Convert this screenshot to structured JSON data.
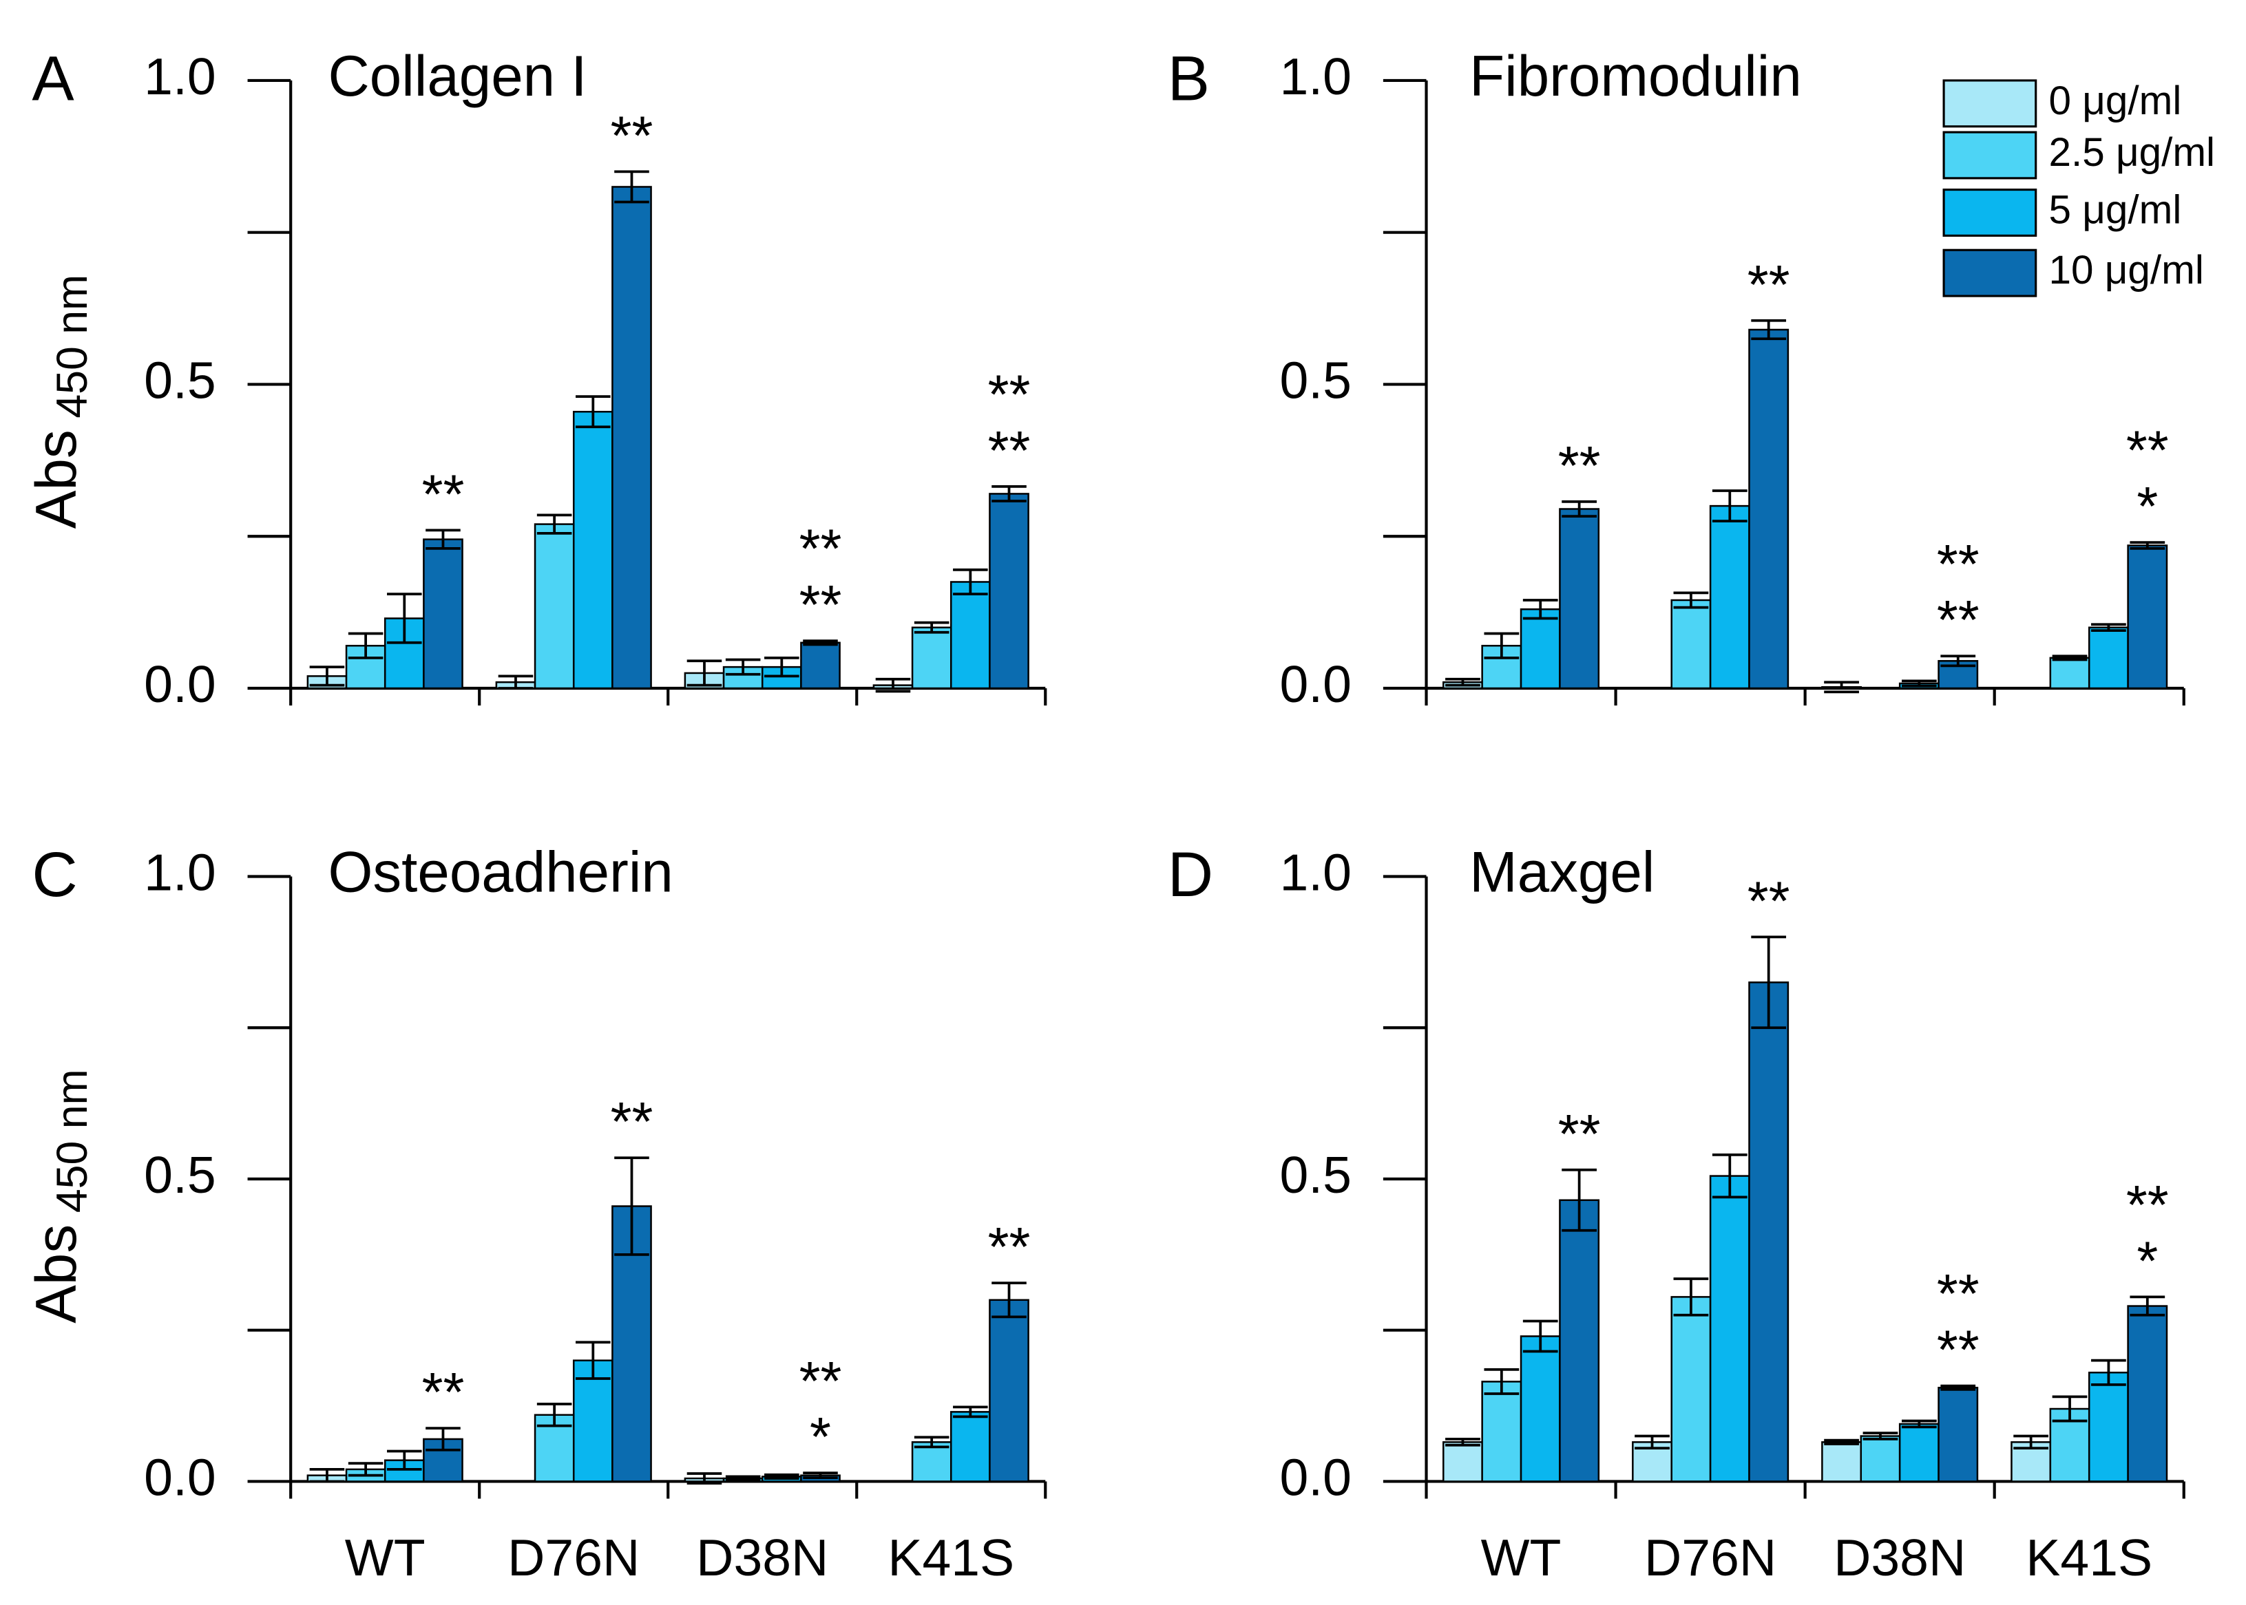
{
  "chart_data": [
    {
      "type": "bar",
      "panel": "A",
      "title": "Collagen I",
      "ylabel": "Abs",
      "ylabel_subscript": "450 nm",
      "ylim": [
        0,
        1
      ],
      "yticks": [
        {
          "value": 0,
          "label": "0.0"
        },
        0.5,
        {
          "value": 1,
          "label": "1.0"
        }
      ],
      "yminor": [
        0.25,
        0.75
      ],
      "series": [
        {
          "color": "#a8e8f8",
          "values": [
            0.02,
            0.01,
            0.025,
            0.005
          ],
          "errors": [
            0.015,
            0.01,
            0.02,
            0.01
          ]
        },
        {
          "color": "#4dd4f5",
          "values": [
            0.07,
            0.27,
            0.035,
            0.1
          ],
          "errors": [
            0.02,
            0.015,
            0.012,
            0.008
          ]
        },
        {
          "color": "#0ab6ef",
          "values": [
            0.115,
            0.455,
            0.035,
            0.175
          ],
          "errors": [
            0.04,
            0.025,
            0.015,
            0.02
          ]
        },
        {
          "color": "#0b6cb0",
          "values": [
            0.245,
            0.825,
            0.075,
            0.32
          ],
          "errors": [
            0.015,
            0.025,
            0.003,
            0.012
          ]
        }
      ],
      "annotations": [
        [
          {
            "text": "**",
            "color": "#000000"
          }
        ],
        [
          {
            "text": "**",
            "color": "#ff0000"
          }
        ],
        [
          {
            "text": "**",
            "color": "#000000"
          },
          {
            "text": "**",
            "color": "#ff0000"
          }
        ],
        [
          {
            "text": "**",
            "color": "#000000"
          },
          {
            "text": "**",
            "color": "#ff0000"
          }
        ]
      ]
    },
    {
      "type": "bar",
      "panel": "B",
      "title": "Fibromodulin",
      "legend": "upper right",
      "ylim": [
        0,
        1
      ],
      "yticks": [
        {
          "value": 0,
          "label": "0.0"
        },
        0.5,
        {
          "value": 1,
          "label": "1.0"
        }
      ],
      "yminor": [
        0.25,
        0.75
      ],
      "series": [
        {
          "name": "0 μg/ml",
          "color": "#a8e8f8",
          "values": [
            0.01,
            0,
            0.002,
            0
          ],
          "errors": [
            0.005,
            0,
            0.008,
            0
          ]
        },
        {
          "name": "2.5 μg/ml",
          "color": "#4dd4f5",
          "values": [
            0.07,
            0.145,
            0,
            0.05
          ],
          "errors": [
            0.02,
            0.012,
            0,
            0.003
          ]
        },
        {
          "name": "5 μg/ml",
          "color": "#0ab6ef",
          "values": [
            0.13,
            0.3,
            0.008,
            0.1
          ],
          "errors": [
            0.015,
            0.025,
            0.004,
            0.005
          ]
        },
        {
          "name": "10 μg/ml",
          "color": "#0b6cb0",
          "values": [
            0.295,
            0.59,
            0.045,
            0.235
          ],
          "errors": [
            0.012,
            0.015,
            0.008,
            0.005
          ]
        }
      ],
      "annotations": [
        [
          {
            "text": "**",
            "color": "#000000"
          }
        ],
        [
          {
            "text": "**",
            "color": "#ff0000"
          }
        ],
        [
          {
            "text": "**",
            "color": "#000000"
          },
          {
            "text": "**",
            "color": "#ff0000"
          }
        ],
        [
          {
            "text": "**",
            "color": "#000000"
          },
          {
            "text": "*",
            "color": "#ff0000"
          }
        ]
      ]
    },
    {
      "type": "bar",
      "panel": "C",
      "title": "Osteoadherin",
      "ylabel": "Abs",
      "ylabel_subscript": "450 nm",
      "categories": [
        "WT",
        "D76N",
        "D38N",
        "K41S"
      ],
      "ylim": [
        0,
        1
      ],
      "yticks": [
        {
          "value": 0,
          "label": "0.0"
        },
        0.5,
        {
          "value": 1,
          "label": "1.0"
        }
      ],
      "yminor": [
        0.25,
        0.75
      ],
      "series": [
        {
          "color": "#a8e8f8",
          "values": [
            0.01,
            0,
            0.005,
            0
          ],
          "errors": [
            0.01,
            0,
            0.008,
            0
          ]
        },
        {
          "color": "#4dd4f5",
          "values": [
            0.02,
            0.11,
            0.005,
            0.065
          ],
          "errors": [
            0.01,
            0.018,
            0.003,
            0.008
          ]
        },
        {
          "color": "#0ab6ef",
          "values": [
            0.035,
            0.2,
            0.008,
            0.115
          ],
          "errors": [
            0.015,
            0.03,
            0.003,
            0.008
          ]
        },
        {
          "color": "#0b6cb0",
          "values": [
            0.07,
            0.455,
            0.01,
            0.3
          ],
          "errors": [
            0.018,
            0.08,
            0.004,
            0.028
          ]
        }
      ],
      "annotations": [
        [
          {
            "text": "**",
            "color": "#000000"
          }
        ],
        [
          {
            "text": "**",
            "color": "#ff0000"
          }
        ],
        [
          {
            "text": "**",
            "color": "#000000"
          },
          {
            "text": "*",
            "color": "#ff0000"
          }
        ],
        [
          {
            "text": "**",
            "color": "#ff0000"
          }
        ]
      ]
    },
    {
      "type": "bar",
      "panel": "D",
      "title": "Maxgel",
      "categories": [
        "WT",
        "D76N",
        "D38N",
        "K41S"
      ],
      "ylim": [
        0,
        1
      ],
      "yticks": [
        {
          "value": 0,
          "label": "0.0"
        },
        0.5,
        {
          "value": 1,
          "label": "1.0"
        }
      ],
      "yminor": [
        0.25,
        0.75
      ],
      "series": [
        {
          "color": "#a8e8f8",
          "values": [
            0.065,
            0.065,
            0.065,
            0.065
          ],
          "errors": [
            0.005,
            0.01,
            0.003,
            0.01
          ]
        },
        {
          "color": "#4dd4f5",
          "values": [
            0.165,
            0.305,
            0.075,
            0.12
          ],
          "errors": [
            0.02,
            0.03,
            0.005,
            0.02
          ]
        },
        {
          "color": "#0ab6ef",
          "values": [
            0.24,
            0.505,
            0.095,
            0.18
          ],
          "errors": [
            0.025,
            0.035,
            0.005,
            0.02
          ]
        },
        {
          "color": "#0b6cb0",
          "values": [
            0.465,
            0.825,
            0.155,
            0.29
          ],
          "errors": [
            0.05,
            0.075,
            0.003,
            0.015
          ]
        }
      ],
      "annotations": [
        [
          {
            "text": "**",
            "color": "#000000"
          }
        ],
        [
          {
            "text": "**",
            "color": "#ff0000"
          }
        ],
        [
          {
            "text": "**",
            "color": "#000000"
          },
          {
            "text": "**",
            "color": "#ff0000"
          }
        ],
        [
          {
            "text": "**",
            "color": "#000000"
          },
          {
            "text": "*",
            "color": "#ff0000"
          }
        ]
      ]
    }
  ]
}
